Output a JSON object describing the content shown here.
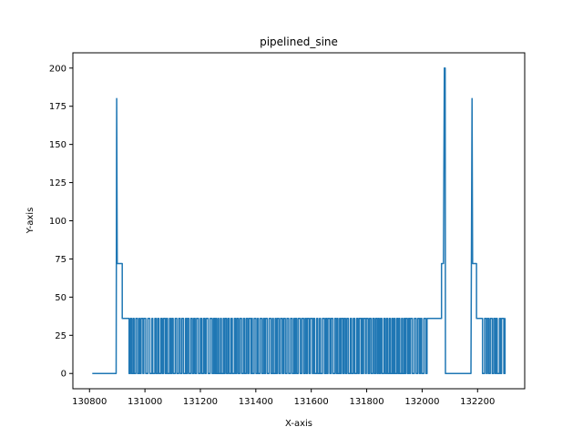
{
  "chart_data": {
    "type": "line",
    "title": "pipelined_sine",
    "xlabel": "X-axis",
    "ylabel": "Y-axis",
    "xlim": [
      130740,
      132370
    ],
    "ylim": [
      -10,
      210
    ],
    "xticks": [
      130800,
      131000,
      131200,
      131400,
      131600,
      131800,
      132000,
      132200
    ],
    "yticks": [
      0,
      25,
      50,
      75,
      100,
      125,
      150,
      175,
      200
    ],
    "grid": false,
    "legend": "none",
    "colors": {
      "line": "#1f77b4",
      "axes": "#000000"
    },
    "series": [
      {
        "spikes": [
          {
            "x": 130898,
            "y": 180,
            "shoulder": 72
          },
          {
            "x": 132080,
            "y": 200,
            "shoulder": 72
          },
          {
            "x": 132180,
            "y": 180,
            "shoulder": 72
          }
        ],
        "baseline_segments": [
          {
            "x0": 130810,
            "x1": 130896,
            "y": 0
          },
          {
            "x0": 132084,
            "x1": 132176,
            "y": 0
          }
        ],
        "oscillation_regions": [
          {
            "x0": 130940,
            "x1": 132020,
            "low": 0,
            "high": 36,
            "period": 10
          },
          {
            "x0": 132215,
            "x1": 132300,
            "low": 0,
            "high": 36,
            "period": 11
          }
        ],
        "plateaus": [
          {
            "x0": 130905,
            "x1": 130918,
            "y": 72
          },
          {
            "x0": 130918,
            "x1": 130940,
            "y": 36
          },
          {
            "x0": 132020,
            "x1": 132070,
            "y": 36
          },
          {
            "x0": 132070,
            "x1": 132077,
            "y": 72
          },
          {
            "x0": 132186,
            "x1": 132196,
            "y": 72
          },
          {
            "x0": 132196,
            "x1": 132215,
            "y": 36
          }
        ]
      }
    ]
  }
}
